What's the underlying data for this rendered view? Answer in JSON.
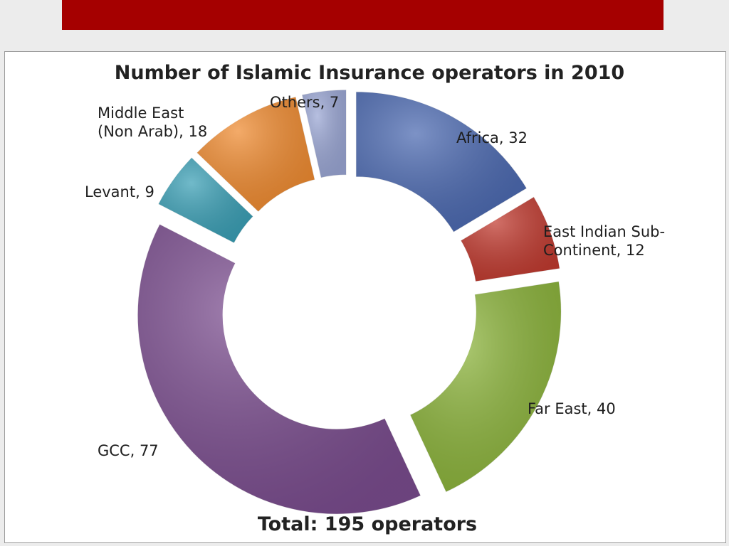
{
  "slide": {
    "header_bar_color": "#a50000"
  },
  "chart_data": {
    "type": "doughnut",
    "title": "Number of Islamic Insurance operators in 2010",
    "total_label": "Total: 195 operators",
    "slices": [
      {
        "label_lines": [
          "Africa, 32"
        ],
        "value": 32,
        "color": "#4a68b0"
      },
      {
        "label_lines": [
          "East Indian Sub-",
          "Continent, 12"
        ],
        "value": 12,
        "color": "#c0392e"
      },
      {
        "label_lines": [
          "Far East, 40"
        ],
        "value": 40,
        "color": "#8bb33a"
      },
      {
        "label_lines": [
          "GCC, 77"
        ],
        "value": 77,
        "color": "#7a4c8e"
      },
      {
        "label_lines": [
          "Levant, 9"
        ],
        "value": 9,
        "color": "#3a9fb5"
      },
      {
        "label_lines": [
          "Middle East",
          "(Non Arab), 18"
        ],
        "value": 18,
        "color": "#ef8a2f"
      },
      {
        "label_lines": [
          "Others, 7"
        ],
        "value": 7,
        "color": "#9aa6d4"
      }
    ]
  }
}
